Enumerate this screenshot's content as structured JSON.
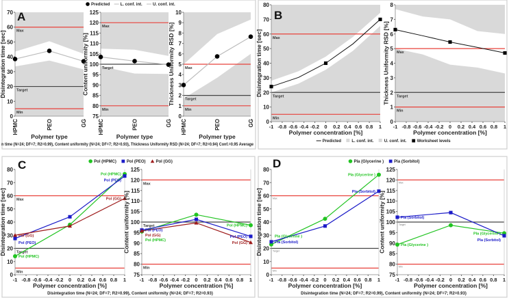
{
  "colors": {
    "band": "#d9d9d9",
    "ref_limit": "#e8413a",
    "ref_target": "#444444",
    "predicted": "#bbbbbb",
    "green": "#22c422",
    "blue": "#1c1cc8",
    "darkred": "#9e1b1b"
  },
  "chart_data": [
    {
      "panel": "A",
      "legend": {
        "placement": "top-center",
        "items": [
          {
            "marker": "circle",
            "label": "Predicted"
          },
          {
            "marker": "line",
            "label": "L. conf. int."
          },
          {
            "marker": "line",
            "label": "U. conf. int."
          }
        ]
      },
      "footer": "n time (N=24; DF=7; R2=0.99),  Content uniformity (N=24; DF=7; R2=0.93),  Thickness Uniformity RSD (N=24; DF=7; R2=0.94)   Conf.=0.95 Average",
      "subplots": [
        {
          "type": "line",
          "xtype": "category",
          "categories": [
            "HPMC",
            "PEO",
            "GG"
          ],
          "xlabel": "Polymer type",
          "ylabel": "Disintegration time [sec]",
          "ylim": [
            0,
            70
          ],
          "yticks": [
            "0",
            "10",
            "20",
            "30",
            "40",
            "50",
            "60",
            "70"
          ],
          "refs": [
            {
              "label": "Max",
              "value": 60,
              "kind": "limit"
            },
            {
              "label": "Target",
              "value": 20,
              "kind": "target"
            },
            {
              "label": "Min",
              "value": 5,
              "kind": "limit"
            }
          ],
          "band": {
            "lower": [
              33.5,
              37.5,
              31.5
            ],
            "upper": [
              43.5,
              50.5,
              42
            ]
          },
          "series": [
            {
              "style": "predicted",
              "values": [
                38.5,
                44,
                37
              ]
            }
          ]
        },
        {
          "type": "line",
          "xtype": "category",
          "categories": [
            "HPMC",
            "PEO",
            "GG"
          ],
          "xlabel": "Polymer type",
          "ylabel": "Content uniformity [%]",
          "ylim": [
            75,
            125
          ],
          "yticks": [
            "75",
            "80",
            "85",
            "90",
            "95",
            "100",
            "105",
            "110",
            "115",
            "120",
            "125"
          ],
          "refs": [
            {
              "label": "Max",
              "value": 120,
              "kind": "limit"
            },
            {
              "label": "Target",
              "value": 100,
              "kind": "target"
            },
            {
              "label": "Min",
              "value": 80,
              "kind": "limit"
            }
          ],
          "band": {
            "lower": [
              99,
              95.5,
              95.3
            ],
            "upper": [
              107.5,
              107,
              104
            ]
          },
          "series": [
            {
              "style": "predicted",
              "values": [
                103.5,
                101.5,
                99.8
              ]
            }
          ]
        },
        {
          "type": "line",
          "xtype": "category",
          "categories": [
            "HPMC",
            "PEO",
            "GG"
          ],
          "xlabel": "Polymer type",
          "ylabel": "Thickness Uniformity RSD [%]",
          "ylim": [
            0,
            10
          ],
          "yticks": [
            "0",
            "1",
            "2",
            "3",
            "4",
            "5",
            "6",
            "7",
            "8",
            "9",
            "10"
          ],
          "refs": [
            {
              "label": "Max",
              "value": 5,
              "kind": "limit"
            },
            {
              "label": "Target",
              "value": 2,
              "kind": "target"
            },
            {
              "label": "Min",
              "value": 1,
              "kind": "limit"
            }
          ],
          "band": {
            "lower": [
              1.7,
              3.7,
              6
            ],
            "upper": [
              5,
              7.9,
              9.3
            ]
          },
          "series": [
            {
              "style": "predicted",
              "values": [
                3,
                5.75,
                7.65
              ]
            }
          ]
        }
      ]
    },
    {
      "panel": "B",
      "legend": {
        "placement": "bottom-center",
        "items": [
          {
            "marker": "line",
            "label": "Predicted"
          },
          {
            "marker": "swatch",
            "label": "L. conf. int."
          },
          {
            "marker": "swatch",
            "label": "U. conf. int."
          },
          {
            "marker": "square",
            "label": "Worksheet levels"
          }
        ]
      },
      "footer": "",
      "subplots": [
        {
          "type": "line",
          "xtype": "numeric",
          "x": [
            -1,
            -0.5,
            0,
            0.5,
            1
          ],
          "xlim": [
            -1,
            1
          ],
          "xticks": [
            "-1",
            "-0.8",
            "-0.6",
            "-0.4",
            "-0.2",
            "0",
            "0.2",
            "0.4",
            "0.6",
            "0.8",
            "1"
          ],
          "xlabel": "Polymer concentration [%]",
          "ylabel": "Disintegration time [sec]",
          "ylim": [
            0,
            80
          ],
          "yticks": [
            "0",
            "10",
            "20",
            "30",
            "40",
            "50",
            "60",
            "70",
            "80"
          ],
          "refs": [
            {
              "label": "Max",
              "value": 60,
              "kind": "limit"
            },
            {
              "label": "Target",
              "value": 20,
              "kind": "target"
            },
            {
              "label": "Min",
              "value": 5,
              "kind": "limit"
            }
          ],
          "band": {
            "lower": [
              20,
              26,
              35.5,
              48.5,
              65.5
            ],
            "upper": [
              28,
              34.5,
              44.5,
              58,
              74.5
            ]
          },
          "series": [
            {
              "style": "black",
              "values": [
                24,
                30.25,
                40,
                53.25,
                70
              ],
              "points": [
                [
                  -1,
                  24
                ],
                [
                  0,
                  40
                ],
                [
                  1,
                  70
                ]
              ]
            }
          ]
        },
        {
          "type": "line",
          "xtype": "numeric",
          "x": [
            -1,
            -0.5,
            0,
            0.5,
            1
          ],
          "xlim": [
            -1,
            1
          ],
          "xticks": [
            "-1",
            "-0.8",
            "-0.6",
            "-0.4",
            "-0.2",
            "0",
            "0.2",
            "0.4",
            "0.6",
            "0.8",
            "1"
          ],
          "xlabel": "Polymer concentration [%]",
          "ylabel": "Thickness Uniformity RSD [%]",
          "ylim": [
            0,
            8
          ],
          "yticks": [
            "0",
            "1",
            "2",
            "3",
            "4",
            "5",
            "6",
            "7",
            "8"
          ],
          "refs": [
            {
              "label": "Max",
              "value": 5,
              "kind": "limit"
            },
            {
              "label": "Target",
              "value": 2,
              "kind": "target"
            },
            {
              "label": "Min",
              "value": 1,
              "kind": "limit"
            }
          ],
          "band": {
            "lower": [
              5.0,
              4.6,
              3.9,
              3.7,
              3.3
            ],
            "upper": [
              7.7,
              7.2,
              7.0,
              6.2,
              6.0
            ]
          },
          "series": [
            {
              "style": "black",
              "values": [
                6.3,
                5.88,
                5.45,
                5.08,
                4.7
              ],
              "points": [
                [
                  -1,
                  6.3
                ],
                [
                  0,
                  5.45
                ],
                [
                  1,
                  4.7
                ]
              ]
            }
          ]
        }
      ]
    },
    {
      "panel": "C",
      "legend": {
        "placement": "top-center",
        "items": [
          {
            "marker": "circle",
            "color": "green",
            "label": "Pol (HPMC)"
          },
          {
            "marker": "square",
            "color": "blue",
            "label": "Pol (PEO)"
          },
          {
            "marker": "triangle",
            "color": "darkred",
            "label": "Pol (GG)"
          }
        ]
      },
      "footer": "Disintegration time (N=24; DF=7; R2=0.99),  Content uniformity (N=24; DF=7; R2=0.93)",
      "subplots": [
        {
          "type": "line",
          "xtype": "numeric",
          "x": [
            -1,
            0,
            1
          ],
          "xlim": [
            -1,
            1
          ],
          "xticks": [
            "-1",
            "-0.8",
            "-0.6",
            "-0.4",
            "-0.2",
            "0",
            "0.2",
            "0.4",
            "0.6",
            "0.8",
            "1"
          ],
          "xlabel": "Polymer concentration [%]",
          "ylabel": "Disintegration time [sec]",
          "ylim": [
            0,
            80
          ],
          "yticks": [
            "0",
            "10",
            "20",
            "30",
            "40",
            "50",
            "60",
            "70",
            "80"
          ],
          "refs": [
            {
              "label": "Max",
              "value": 60,
              "kind": "limit"
            },
            {
              "label": "Target",
              "value": 20,
              "kind": "target"
            },
            {
              "label": "Min",
              "value": 5,
              "kind": "limit"
            }
          ],
          "series": [
            {
              "name": "Pol (HPMC)",
              "color": "green",
              "marker": "circle",
              "values": [
                14,
                38,
                76.5
              ]
            },
            {
              "name": "Pol (PEO)",
              "color": "blue",
              "marker": "square",
              "values": [
                27.5,
                44,
                75
              ]
            },
            {
              "name": "Pol (GG)",
              "color": "darkred",
              "marker": "triangle",
              "values": [
                30,
                37,
                58
              ]
            }
          ]
        },
        {
          "type": "line",
          "xtype": "numeric",
          "x": [
            -1,
            0,
            1
          ],
          "xlim": [
            -1,
            1
          ],
          "xticks": [
            "-1",
            "-0.8",
            "-0.6",
            "-0.4",
            "-0.2",
            "0",
            "0.2",
            "0.4",
            "0.6",
            "0.8",
            "1"
          ],
          "xlabel": "Polymer concentration [%]",
          "ylabel": "Content uniformity [%]",
          "ylim": [
            75,
            125
          ],
          "yticks": [
            "75",
            "80",
            "85",
            "90",
            "95",
            "100",
            "105",
            "110",
            "115",
            "120",
            "125"
          ],
          "refs": [
            {
              "label": "Max",
              "value": 120,
              "kind": "limit"
            },
            {
              "label": "Target",
              "value": 100,
              "kind": "target"
            },
            {
              "label": "Min",
              "value": 80,
              "kind": "limit"
            }
          ],
          "series": [
            {
              "name": "Pol (HPMC)",
              "color": "green",
              "marker": "circle",
              "values": [
                95.5,
                103.5,
                98.5
              ]
            },
            {
              "name": "Pol (PEO)",
              "color": "blue",
              "marker": "square",
              "values": [
                96.2,
                101.3,
                93.2
              ]
            },
            {
              "name": "Pol (GG)",
              "color": "darkred",
              "marker": "triangle",
              "values": [
                95.8,
                99.6,
                90.3
              ]
            }
          ]
        }
      ]
    },
    {
      "panel": "D",
      "legend": {
        "placement": "top-center",
        "items": [
          {
            "marker": "circle",
            "color": "green",
            "label": "Pla (Glycerine )"
          },
          {
            "marker": "square",
            "color": "blue",
            "label": "Pla (Sorbitol)"
          }
        ]
      },
      "footer": "Disintegration time (N=24; DF=7; R2=0.99),  Content uniformity (N=24; DF=7; R2=0.93)",
      "subplots": [
        {
          "type": "line",
          "xtype": "numeric",
          "x": [
            -1,
            0,
            1
          ],
          "xlim": [
            -1,
            1
          ],
          "xticks": [
            "-1",
            "-0.8",
            "-0.6",
            "-0.4",
            "-0.2",
            "0",
            "0.2",
            "0.4",
            "0.6",
            "0.8",
            "1"
          ],
          "xlabel": "Polymer concentration [%]",
          "ylabel": "Disintegration time [sec]",
          "ylim": [
            0,
            80
          ],
          "yticks": [
            "0",
            "10",
            "20",
            "30",
            "40",
            "50",
            "60",
            "70",
            "80"
          ],
          "refs": [
            {
              "label": "Max",
              "value": 60,
              "kind": "limit"
            },
            {
              "label": "Target",
              "value": 20,
              "kind": "target"
            },
            {
              "label": "Min",
              "value": 5,
              "kind": "limit"
            }
          ],
          "small_ref_labels": true,
          "series": [
            {
              "name": "Pla (Glycerine )",
              "color": "green",
              "marker": "circle",
              "values": [
                23,
                42.5,
                76
              ]
            },
            {
              "name": "Pla (Sorbitol)",
              "color": "blue",
              "marker": "square",
              "values": [
                25,
                37,
                63.5
              ]
            }
          ]
        },
        {
          "type": "line",
          "xtype": "numeric",
          "x": [
            -1,
            0,
            1
          ],
          "xlim": [
            -1,
            1
          ],
          "xticks": [
            "-1",
            "-0.8",
            "-0.6",
            "-0.4",
            "-0.2",
            "0",
            "0.2",
            "0.4",
            "0.6",
            "0.8",
            "1"
          ],
          "xlabel": "Polymer concentration [%]",
          "ylabel": "Content uniformity [%]",
          "ylim": [
            75,
            125
          ],
          "yticks": [
            "75",
            "80",
            "85",
            "90",
            "95",
            "100",
            "105",
            "110",
            "115",
            "120",
            "125"
          ],
          "refs": [
            {
              "label": "Max",
              "value": 120,
              "kind": "limit"
            },
            {
              "label": "Target",
              "value": 100,
              "kind": "target"
            },
            {
              "label": "Min",
              "value": 80,
              "kind": "limit"
            }
          ],
          "small_ref_labels": true,
          "series": [
            {
              "name": "Pla (Glycerine )",
              "color": "green",
              "marker": "circle",
              "values": [
                89.3,
                98.5,
                94.7
              ]
            },
            {
              "name": "Pla (Sorbitol)",
              "color": "blue",
              "marker": "square",
              "values": [
                102.3,
                104.5,
                93.5
              ]
            }
          ]
        }
      ]
    }
  ]
}
